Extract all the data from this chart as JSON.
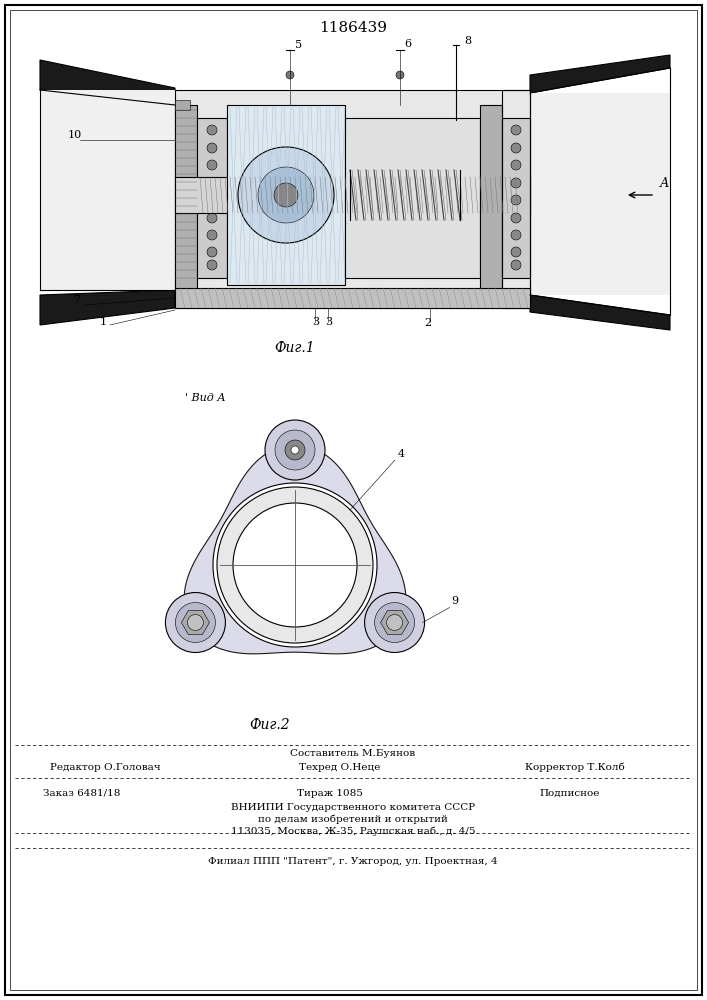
{
  "title": "1186439",
  "bg_color": "#ffffff",
  "line_color": "#000000",
  "fig1_caption": "Фиг.1",
  "fig2_caption": "Фиг.2",
  "view_label": "Вид А",
  "footer_sestavitel": "Составитель М.Буянов",
  "footer_tehred": "Техред О.Неце",
  "footer_redaktor": "Редактор О.Головач",
  "footer_korrektor": "Корректор Т.Колб",
  "footer_zakaz": "Заказ 6481/18",
  "footer_tirazh": "Тираж 1085",
  "footer_podpisnoe": "Подписное",
  "footer_vniipи": "ВНИИПИ Государственного комитета СССР",
  "footer_line4": "по делам изобретений и открытий",
  "footer_line5": "113035, Москва, Ж-35, Раушская наб., д. 4/5",
  "footer_bottom": "Филиал ППП \"Патент\", г. Ужгород, ул. Проектная, 4"
}
